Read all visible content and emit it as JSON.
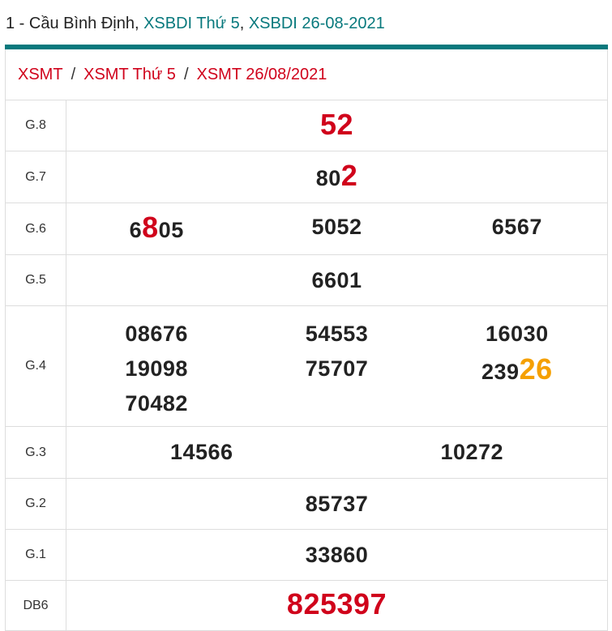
{
  "header": {
    "prefix": "1 - Cầu Bình Định, ",
    "link1": "XSBDI Thứ 5",
    "sep": ", ",
    "link2": "XSBDI 26-08-2021"
  },
  "breadcrumb": [
    "XSMT",
    "XSMT Thứ 5",
    "XSMT 26/08/2021"
  ],
  "breadcrumb_sep": "/",
  "colors": {
    "accent": "#08797d",
    "red": "#d0021b",
    "orange": "#f5a000"
  },
  "prizes": [
    {
      "label": "G.8",
      "cols": [
        [
          [
            {
              "t": "52",
              "c": "red",
              "big": true
            }
          ]
        ]
      ]
    },
    {
      "label": "G.7",
      "cols": [
        [
          [
            {
              "t": "80"
            },
            {
              "t": "2",
              "c": "red",
              "big": true
            }
          ]
        ]
      ]
    },
    {
      "label": "G.6",
      "cols": [
        [
          [
            {
              "t": "6"
            },
            {
              "t": "8",
              "c": "red",
              "big": true
            },
            {
              "t": "05"
            }
          ]
        ],
        [
          [
            {
              "t": "5052"
            }
          ]
        ],
        [
          [
            {
              "t": "6567"
            }
          ]
        ]
      ]
    },
    {
      "label": "G.5",
      "cols": [
        [
          [
            {
              "t": "6601"
            }
          ]
        ]
      ]
    },
    {
      "label": "G.4",
      "cols": [
        [
          [
            {
              "t": "08676"
            }
          ],
          [
            {
              "t": "19098"
            }
          ],
          [
            {
              "t": "70482"
            }
          ]
        ],
        [
          [
            {
              "t": "54553"
            }
          ],
          [
            {
              "t": "75707"
            }
          ]
        ],
        [
          [
            {
              "t": "16030"
            }
          ],
          [
            {
              "t": "239"
            },
            {
              "t": "26",
              "c": "orange",
              "big": true
            }
          ]
        ]
      ]
    },
    {
      "label": "G.3",
      "cols": [
        [
          [
            {
              "t": "14566"
            }
          ]
        ],
        [
          [
            {
              "t": "10272"
            }
          ]
        ]
      ]
    },
    {
      "label": "G.2",
      "cols": [
        [
          [
            {
              "t": "85737"
            }
          ]
        ]
      ]
    },
    {
      "label": "G.1",
      "cols": [
        [
          [
            {
              "t": "33860"
            }
          ]
        ]
      ]
    },
    {
      "label": "DB6",
      "cols": [
        [
          [
            {
              "t": "825397",
              "c": "red",
              "big": true
            }
          ]
        ]
      ]
    }
  ]
}
